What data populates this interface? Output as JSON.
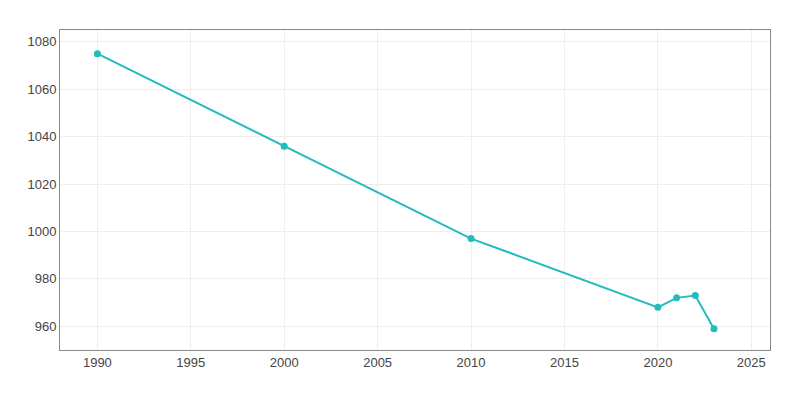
{
  "chart_data": {
    "type": "line",
    "x": [
      1990,
      2000,
      2010,
      2020,
      2021,
      2022,
      2023
    ],
    "values": [
      1075,
      1036,
      997,
      968,
      972,
      973,
      959
    ],
    "color": "#22BCBC",
    "marker": "circle",
    "xlim": [
      1988,
      2026
    ],
    "ylim": [
      950,
      1085
    ],
    "xticks": [
      1990,
      1995,
      2000,
      2005,
      2010,
      2015,
      2020,
      2025
    ],
    "yticks": [
      960,
      980,
      1000,
      1020,
      1040,
      1060,
      1080
    ],
    "grid": true
  }
}
